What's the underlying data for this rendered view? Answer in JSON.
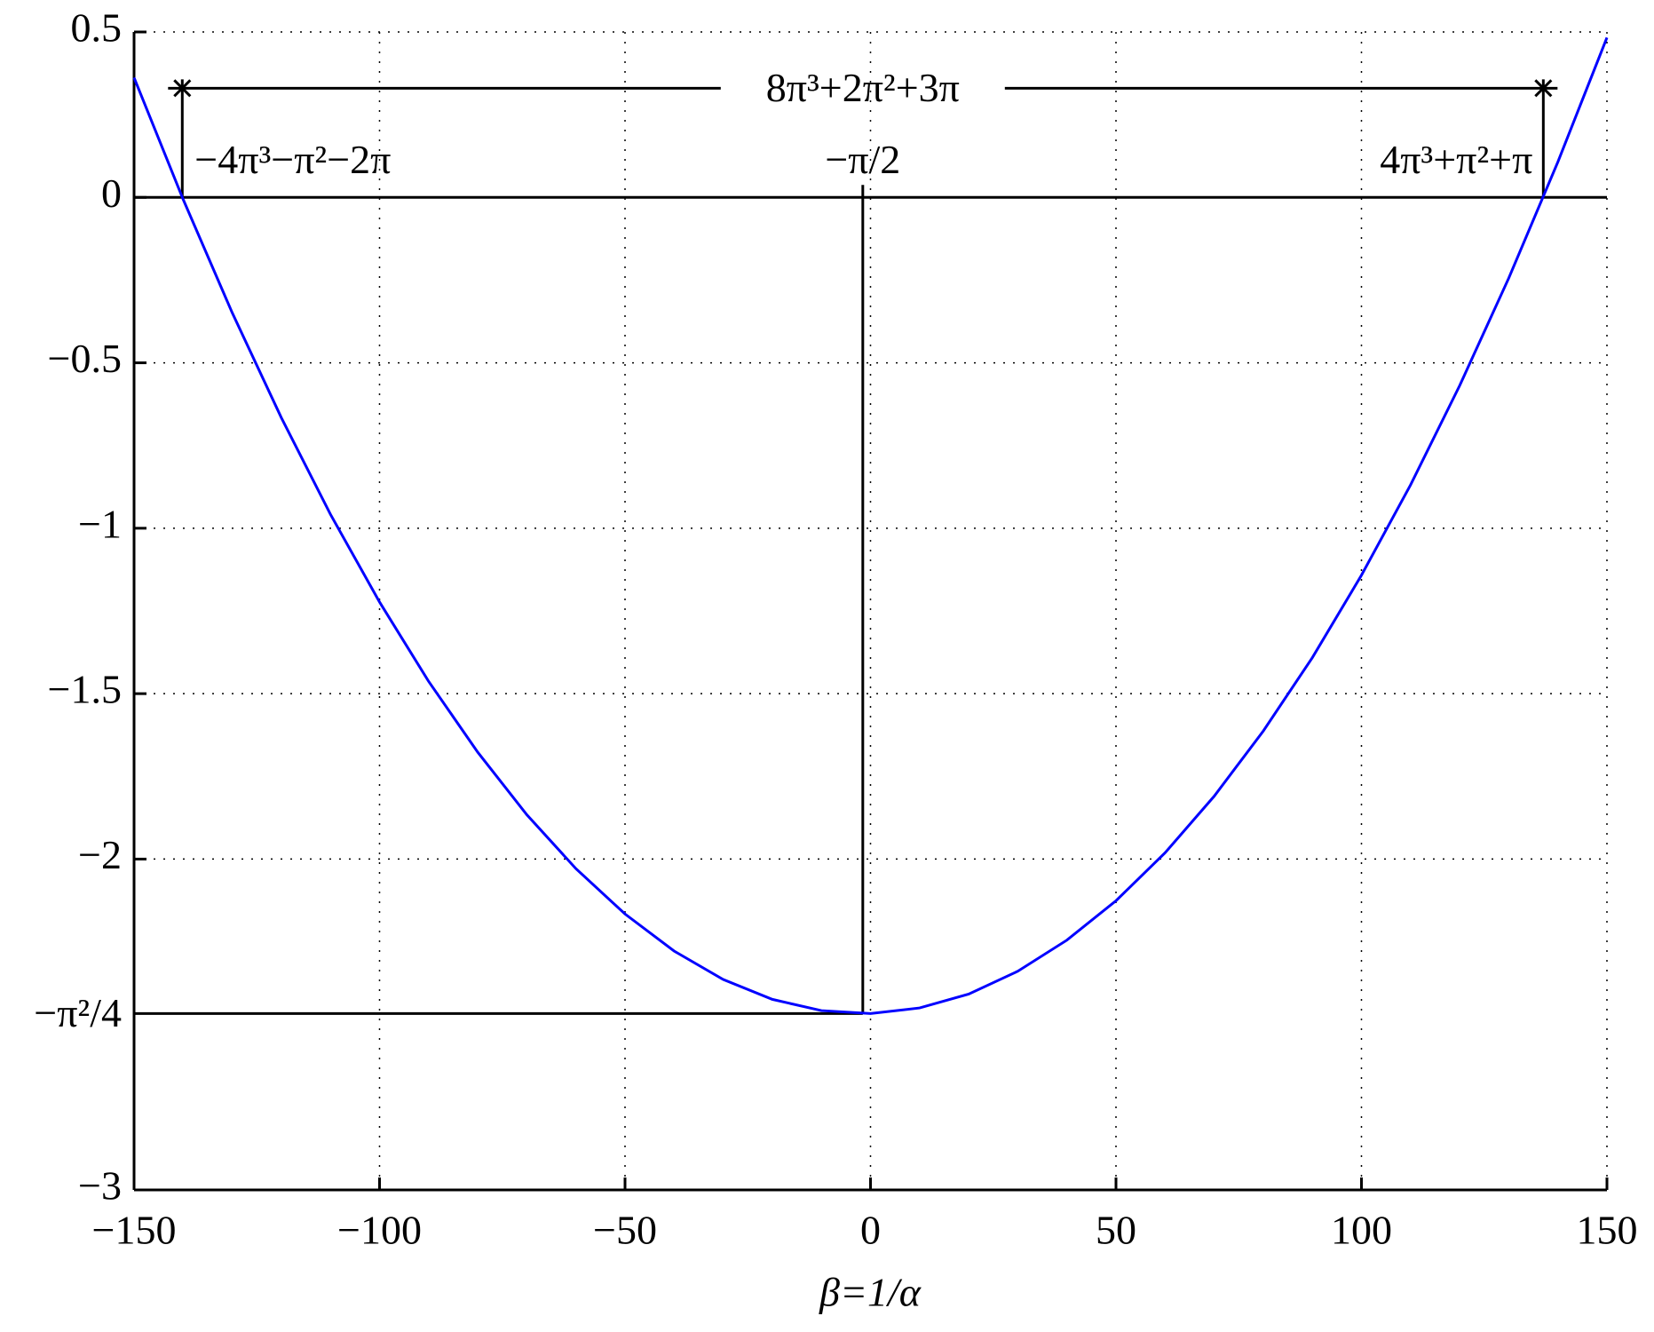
{
  "chart_data": {
    "type": "line",
    "x_label": "β=1/α",
    "xlim": [
      -150,
      150
    ],
    "ylim": [
      -3,
      0.5
    ],
    "xticks": [
      {
        "value": -150,
        "label": "−150"
      },
      {
        "value": -100,
        "label": "−100"
      },
      {
        "value": -50,
        "label": "−50"
      },
      0,
      50,
      100,
      150
    ],
    "yticks": [
      0.5,
      0,
      {
        "value": -0.5,
        "label": "−0.5"
      },
      {
        "value": -1,
        "label": "−1"
      },
      {
        "value": -1.5,
        "label": "−1.5"
      },
      {
        "value": -2,
        "label": "−2"
      },
      {
        "value": -3,
        "label": "−3"
      }
    ],
    "grid": true,
    "series": [
      {
        "color": "#0000ff",
        "x": [
          -150,
          -140,
          -130,
          -120,
          -110,
          -100,
          -90,
          -80,
          -70,
          -60,
          -50,
          -40,
          -30,
          -20,
          -10,
          0,
          10,
          20,
          30,
          40,
          50,
          60,
          70,
          80,
          90,
          100,
          110,
          120,
          130,
          140,
          150
        ],
        "values": [
          0.362,
          -0.006,
          -0.349,
          -0.666,
          -0.958,
          -1.223,
          -1.463,
          -1.677,
          -1.866,
          -2.029,
          -2.166,
          -2.278,
          -2.364,
          -2.424,
          -2.458,
          -2.467,
          -2.45,
          -2.408,
          -2.339,
          -2.245,
          -2.126,
          -1.981,
          -1.81,
          -1.613,
          -1.391,
          -1.142,
          -0.869,
          -0.569,
          -0.244,
          0.107,
          0.483
        ]
      }
    ],
    "annotations": {
      "roots": [
        {
          "x": -140.18,
          "label": "−4π³−π²−2π"
        },
        {
          "x": 137.04,
          "label": "4π³+π²+π"
        }
      ],
      "span": {
        "y": 0.33,
        "label": "8π³+2π²+3π"
      },
      "vertex": {
        "x": -1.571,
        "y": -2.467,
        "x_label": "−π/2",
        "y_label": "−π²/4"
      }
    }
  }
}
